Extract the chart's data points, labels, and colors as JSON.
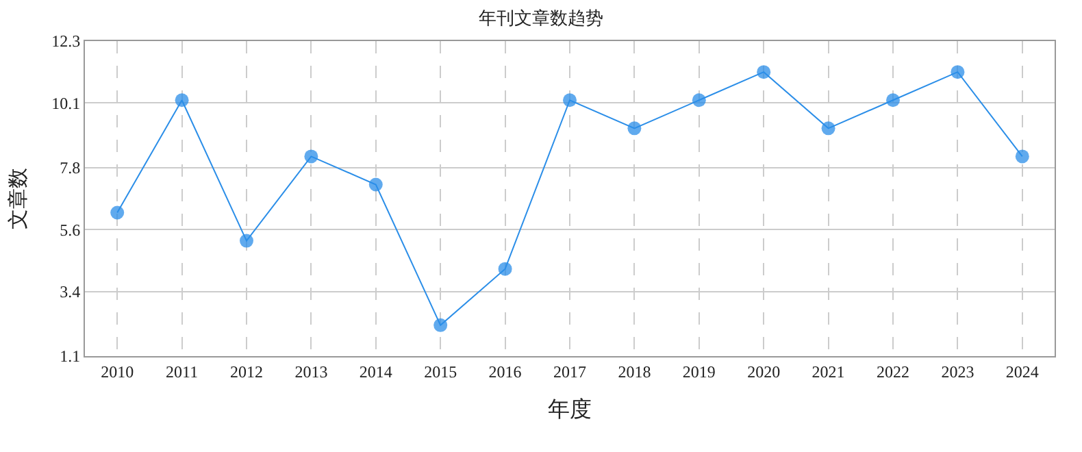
{
  "chart_data": {
    "type": "line",
    "title": "年刊文章数趋势",
    "xlabel": "年度",
    "ylabel": "文章数",
    "categories": [
      "2010",
      "2011",
      "2012",
      "2013",
      "2014",
      "2015",
      "2016",
      "2017",
      "2018",
      "2019",
      "2020",
      "2021",
      "2022",
      "2023",
      "2024"
    ],
    "series": [
      {
        "color": "#2b8ee8",
        "values": [
          6.2,
          10.2,
          5.2,
          8.2,
          7.2,
          2.2,
          4.2,
          10.2,
          9.2,
          10.2,
          11.2,
          9.2,
          10.2,
          11.2,
          8.2
        ]
      }
    ],
    "ylim": [
      1.1,
      12.3
    ],
    "yticks": [
      1.1,
      3.4,
      5.6,
      7.8,
      10.1,
      12.3
    ],
    "grid": true,
    "marker": "circle",
    "line_style": "solid",
    "legend": false
  }
}
